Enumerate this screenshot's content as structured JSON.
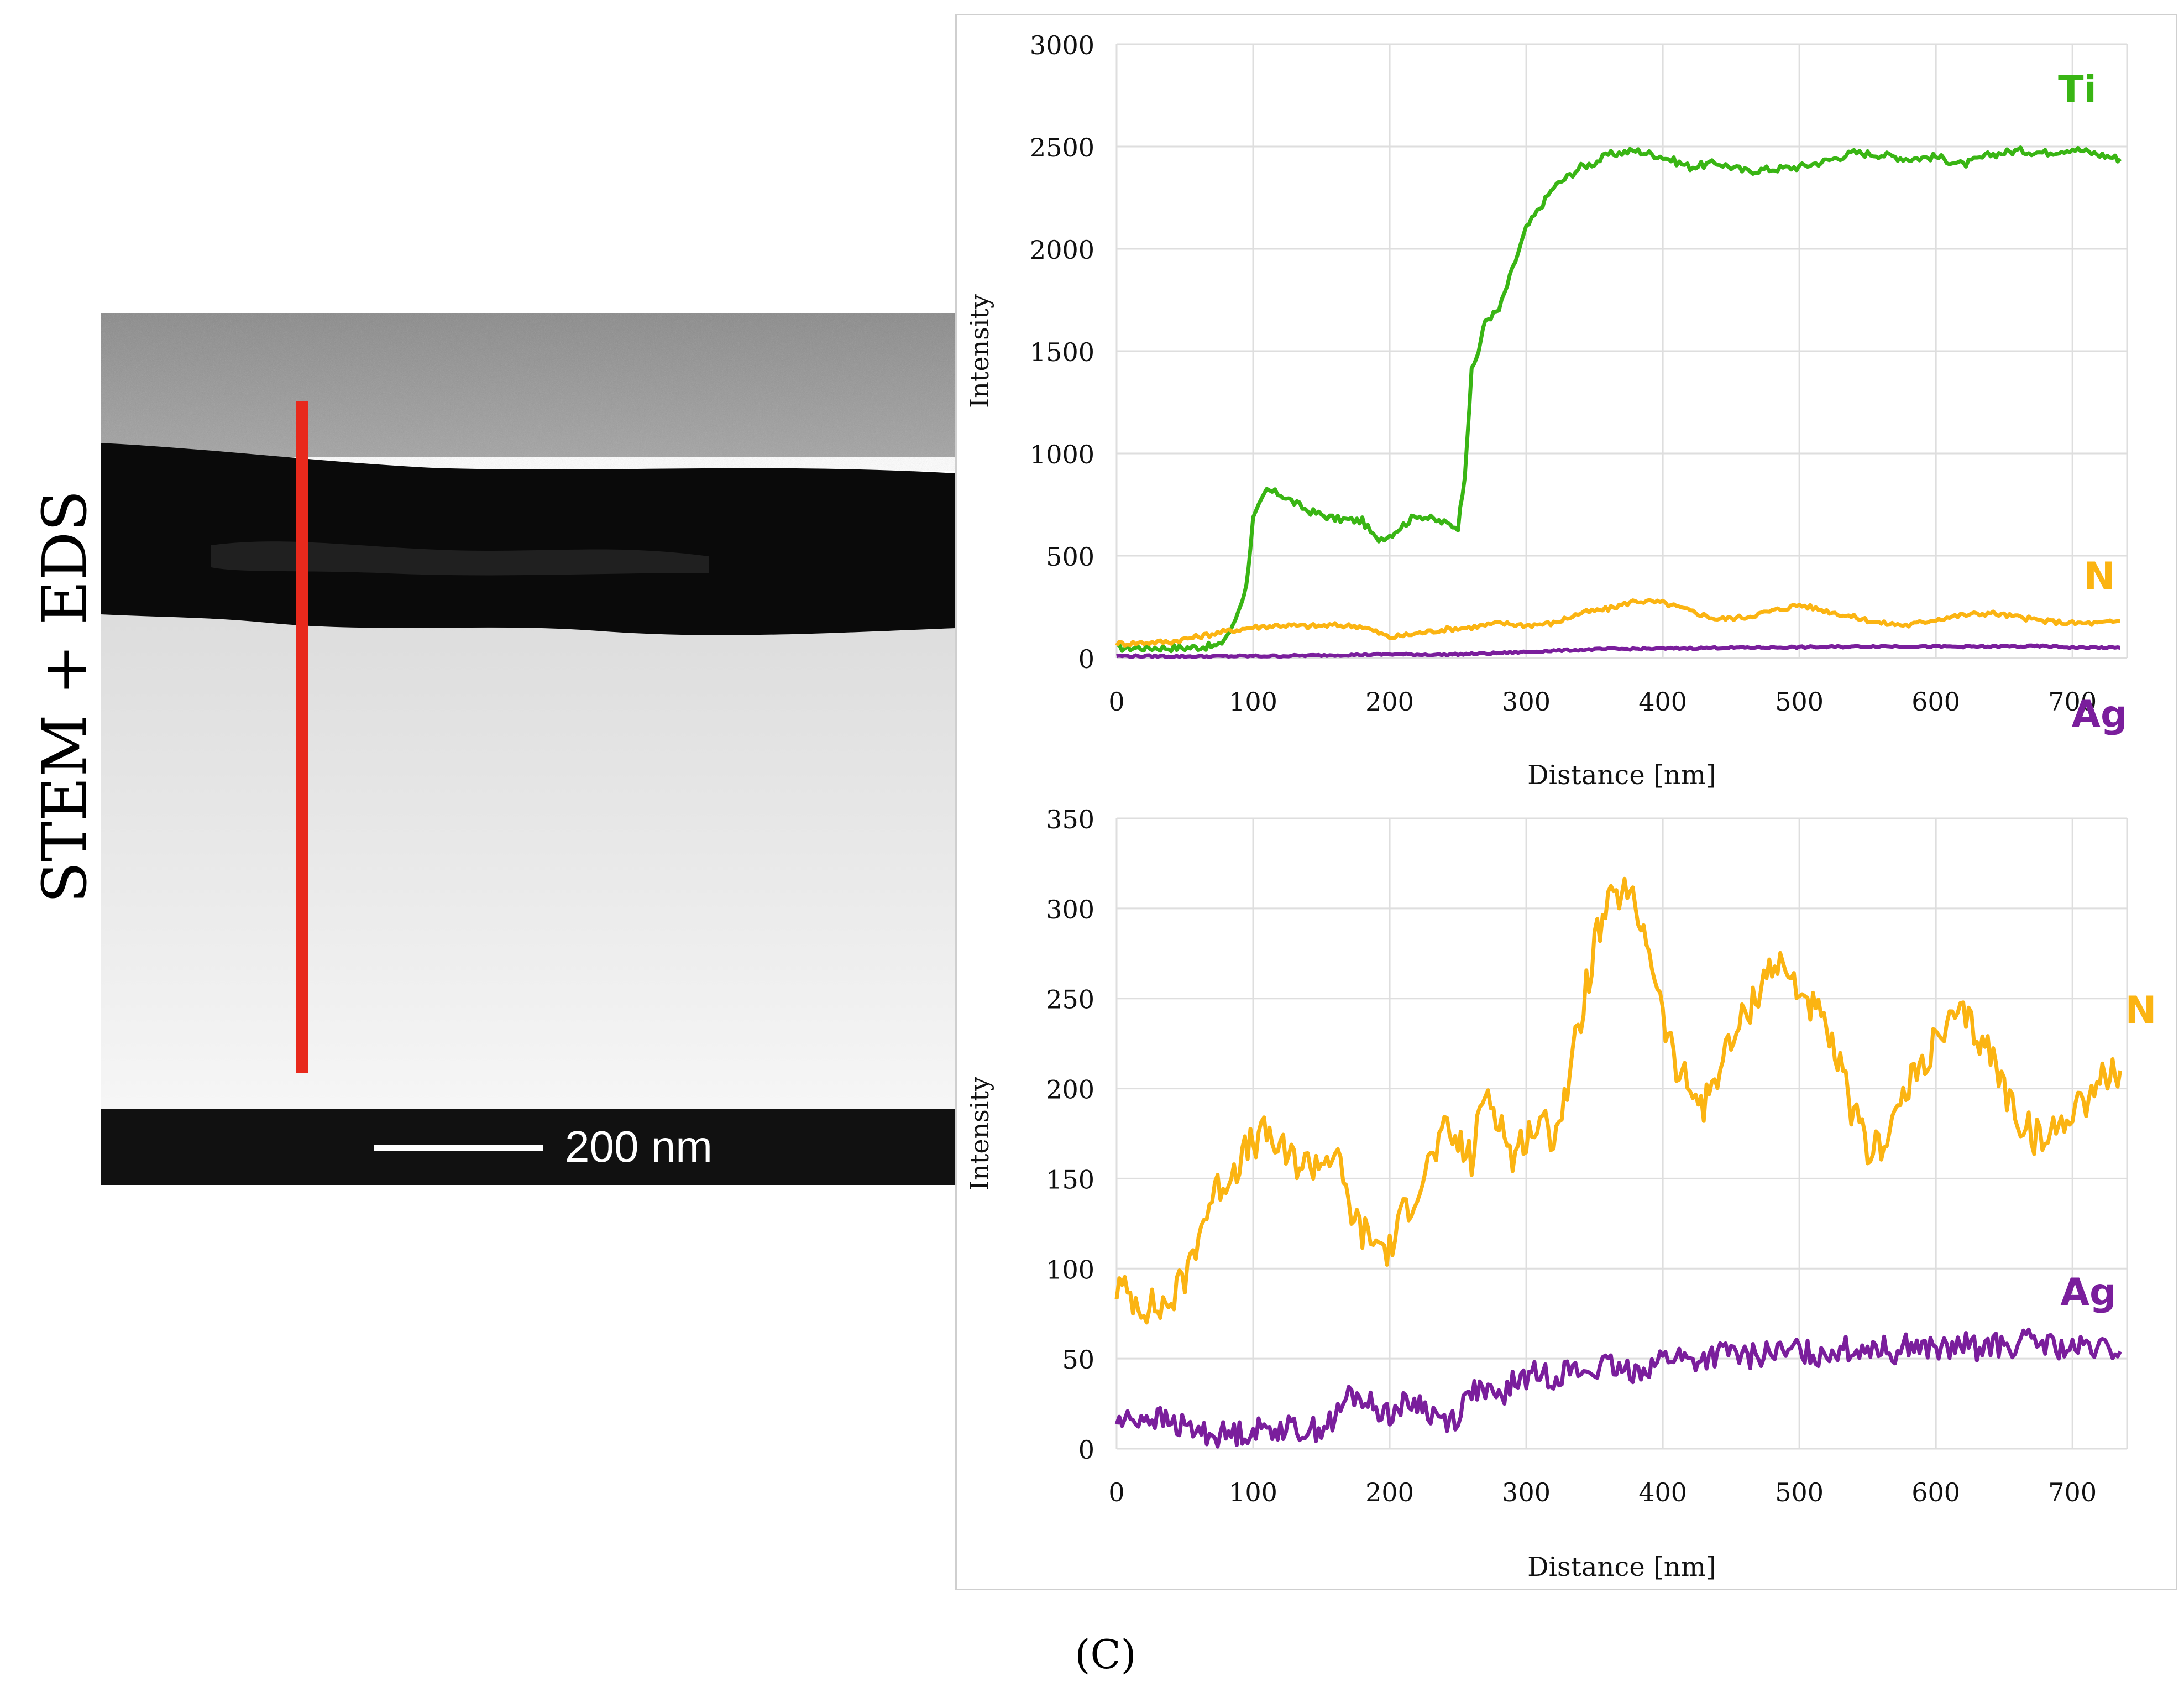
{
  "side_label": "STEM + EDS",
  "scale_bar_label": "200 nm",
  "panel_label": "(C)",
  "colors": {
    "Ti": "#39b514",
    "N": "#fbb412",
    "Ag": "#7a1e9c",
    "line": "#e8291c"
  },
  "chart_data": [
    {
      "type": "line",
      "title": "",
      "xlabel": "Distance [nm]",
      "ylabel": "Intensity",
      "xlim": [
        0,
        740
      ],
      "ylim": [
        0,
        3000
      ],
      "xticks": [
        0,
        100,
        200,
        300,
        400,
        500,
        600,
        700
      ],
      "yticks": [
        0,
        500,
        1000,
        1500,
        2000,
        2500,
        3000
      ],
      "grid": true,
      "series": [
        {
          "name": "Ti",
          "x": [
            0,
            50,
            75,
            85,
            95,
            100,
            110,
            120,
            140,
            160,
            180,
            190,
            200,
            220,
            240,
            250,
            255,
            260,
            265,
            270,
            280,
            290,
            300,
            310,
            320,
            330,
            340,
            350,
            360,
            380,
            400,
            420,
            440,
            460,
            480,
            500,
            520,
            540,
            560,
            580,
            600,
            620,
            640,
            660,
            680,
            700,
            720,
            735
          ],
          "y": [
            50,
            50,
            60,
            150,
            350,
            680,
            820,
            800,
            720,
            680,
            670,
            580,
            600,
            700,
            660,
            640,
            900,
            1400,
            1500,
            1650,
            1700,
            1900,
            2100,
            2200,
            2300,
            2350,
            2400,
            2420,
            2460,
            2480,
            2450,
            2400,
            2420,
            2380,
            2390,
            2400,
            2430,
            2470,
            2460,
            2440,
            2450,
            2410,
            2460,
            2480,
            2470,
            2490,
            2460,
            2440
          ]
        },
        {
          "name": "N",
          "x": [
            0,
            40,
            80,
            100,
            120,
            140,
            160,
            180,
            200,
            220,
            240,
            260,
            280,
            300,
            320,
            340,
            360,
            380,
            400,
            420,
            440,
            460,
            480,
            500,
            520,
            540,
            560,
            580,
            600,
            620,
            640,
            660,
            680,
            700,
            720,
            735
          ],
          "y": [
            70,
            80,
            130,
            150,
            160,
            155,
            160,
            155,
            100,
            120,
            140,
            150,
            170,
            160,
            170,
            220,
            240,
            280,
            270,
            230,
            190,
            200,
            230,
            260,
            230,
            200,
            170,
            160,
            190,
            210,
            220,
            200,
            180,
            170,
            170,
            180
          ]
        },
        {
          "name": "Ag",
          "x": [
            0,
            60,
            120,
            160,
            200,
            240,
            280,
            320,
            360,
            400,
            440,
            480,
            520,
            560,
            600,
            640,
            680,
            700,
            735
          ],
          "y": [
            10,
            8,
            10,
            14,
            18,
            16,
            24,
            36,
            44,
            46,
            50,
            52,
            54,
            58,
            56,
            56,
            58,
            52,
            50
          ]
        }
      ],
      "legend": [
        "Ti",
        "N",
        "Ag"
      ],
      "legend_position": "right"
    },
    {
      "type": "line",
      "title": "",
      "xlabel": "Distance [nm]",
      "ylabel": "Intensity",
      "xlim": [
        0,
        740
      ],
      "ylim": [
        0,
        350
      ],
      "xticks": [
        0,
        100,
        200,
        300,
        400,
        500,
        600,
        700
      ],
      "yticks": [
        0,
        50,
        100,
        150,
        200,
        250,
        300,
        350
      ],
      "grid": true,
      "series": [
        {
          "name": "N",
          "x": [
            0,
            10,
            20,
            30,
            40,
            50,
            60,
            70,
            80,
            90,
            100,
            110,
            120,
            130,
            140,
            150,
            160,
            170,
            180,
            190,
            200,
            210,
            220,
            230,
            240,
            250,
            260,
            270,
            280,
            290,
            300,
            310,
            320,
            330,
            340,
            350,
            360,
            370,
            380,
            390,
            400,
            410,
            420,
            430,
            440,
            450,
            460,
            470,
            480,
            490,
            500,
            510,
            520,
            530,
            540,
            550,
            560,
            570,
            580,
            590,
            600,
            610,
            620,
            630,
            640,
            650,
            660,
            670,
            680,
            690,
            700,
            710,
            720,
            735
          ],
          "y": [
            90,
            85,
            80,
            78,
            82,
            95,
            120,
            140,
            150,
            160,
            170,
            175,
            165,
            160,
            158,
            160,
            165,
            135,
            120,
            115,
            110,
            130,
            145,
            160,
            175,
            170,
            160,
            200,
            185,
            160,
            175,
            180,
            175,
            200,
            240,
            280,
            300,
            310,
            300,
            280,
            240,
            210,
            200,
            190,
            210,
            225,
            240,
            255,
            270,
            265,
            255,
            245,
            230,
            210,
            185,
            165,
            170,
            185,
            200,
            215,
            225,
            235,
            240,
            230,
            220,
            200,
            185,
            175,
            170,
            180,
            190,
            195,
            205,
            210
          ]
        },
        {
          "name": "Ag",
          "x": [
            0,
            10,
            20,
            30,
            40,
            50,
            60,
            70,
            80,
            90,
            100,
            110,
            120,
            130,
            140,
            150,
            160,
            170,
            180,
            190,
            200,
            210,
            220,
            230,
            240,
            250,
            260,
            270,
            280,
            290,
            300,
            310,
            320,
            330,
            340,
            350,
            360,
            370,
            380,
            390,
            400,
            410,
            420,
            430,
            440,
            450,
            460,
            470,
            480,
            490,
            500,
            510,
            520,
            530,
            540,
            550,
            560,
            570,
            580,
            590,
            600,
            610,
            620,
            630,
            640,
            650,
            660,
            670,
            680,
            690,
            700,
            710,
            720,
            735
          ],
          "y": [
            15,
            16,
            18,
            17,
            14,
            12,
            10,
            8,
            8,
            9,
            10,
            11,
            12,
            11,
            10,
            12,
            16,
            30,
            28,
            22,
            20,
            24,
            26,
            20,
            16,
            18,
            34,
            30,
            28,
            36,
            40,
            42,
            40,
            44,
            42,
            44,
            46,
            42,
            44,
            46,
            50,
            52,
            48,
            50,
            52,
            54,
            50,
            52,
            54,
            52,
            56,
            52,
            54,
            56,
            54,
            58,
            56,
            54,
            58,
            56,
            56,
            54,
            58,
            56,
            58,
            56,
            58,
            60,
            58,
            56,
            54,
            56,
            55,
            54
          ]
        }
      ],
      "legend": [
        "N",
        "Ag"
      ],
      "legend_position": "right"
    }
  ]
}
